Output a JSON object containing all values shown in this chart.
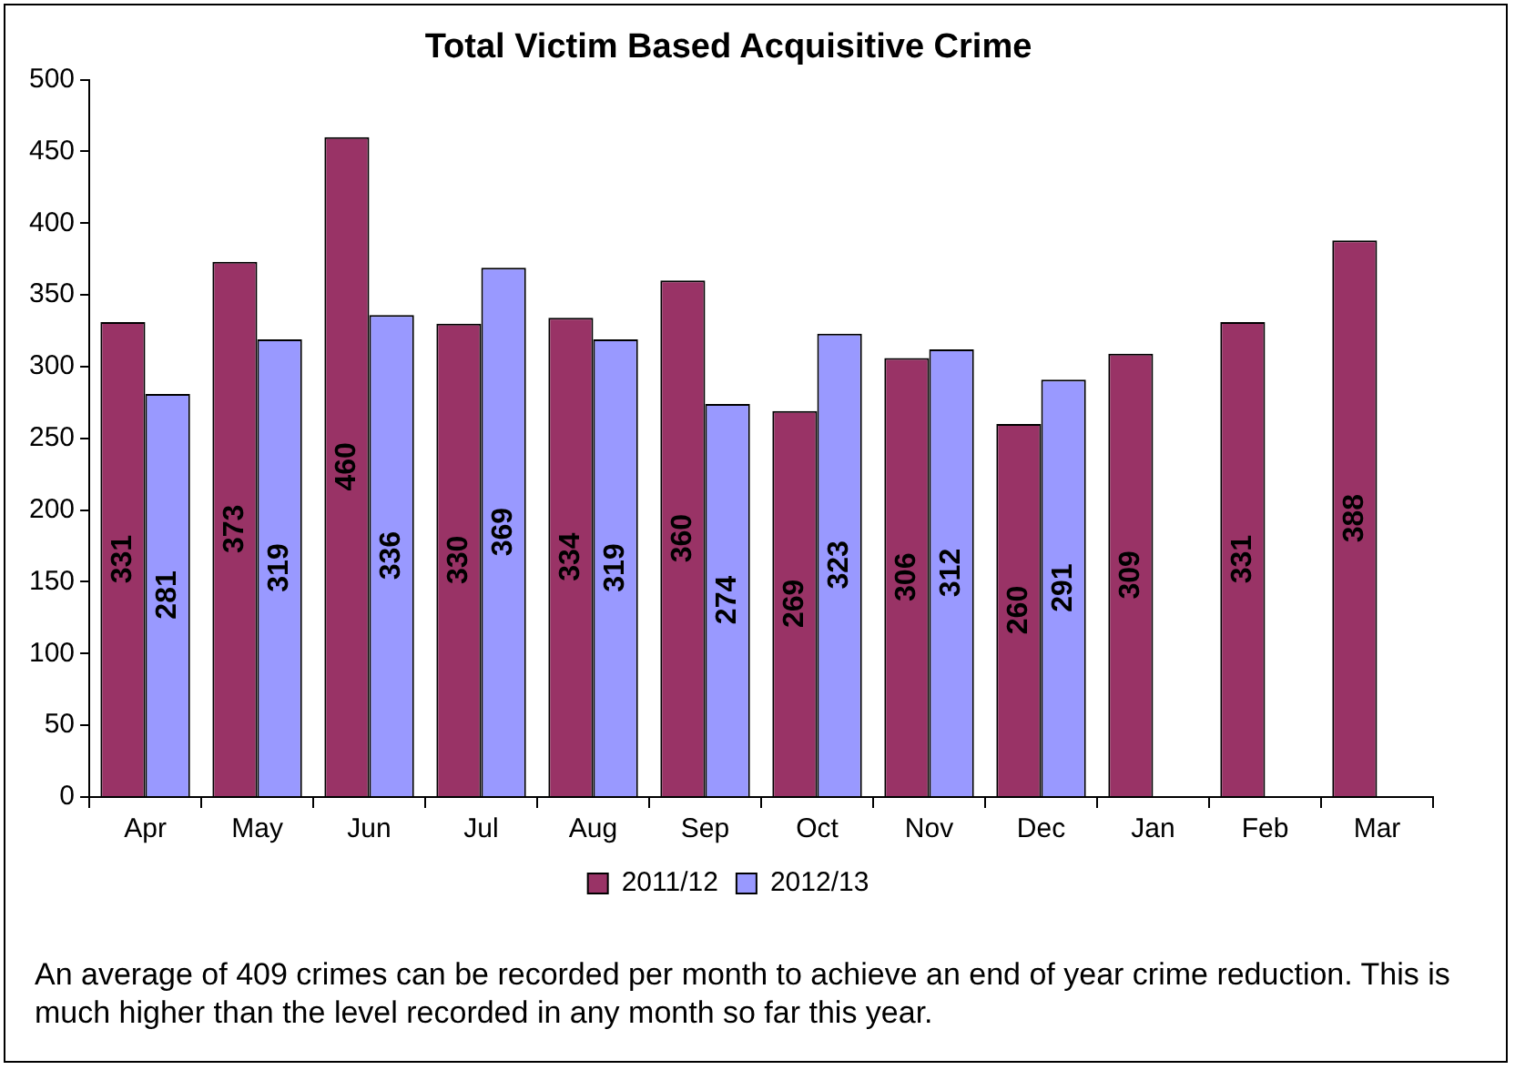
{
  "chart_data": {
    "type": "bar",
    "title": "Total Victim Based Acquisitive Crime",
    "categories": [
      "Apr",
      "May",
      "Jun",
      "Jul",
      "Aug",
      "Sep",
      "Oct",
      "Nov",
      "Dec",
      "Jan",
      "Feb",
      "Mar"
    ],
    "series": [
      {
        "name": "2011/12",
        "color": "#993366",
        "values": [
          331,
          373,
          460,
          330,
          334,
          360,
          269,
          306,
          260,
          309,
          331,
          388
        ]
      },
      {
        "name": "2012/13",
        "color": "#9999ff",
        "values": [
          281,
          319,
          336,
          369,
          319,
          274,
          323,
          312,
          291,
          null,
          null,
          null
        ]
      }
    ],
    "ylim": [
      0,
      500
    ],
    "yticks": [
      0,
      50,
      100,
      150,
      200,
      250,
      300,
      350,
      400,
      450,
      500
    ],
    "grid": false,
    "legend": "bottom",
    "data_labels": true,
    "annotations": [
      "An average of 409 crimes can be recorded per month to achieve an end of year crime reduction. This is much higher than the level recorded in any month so far this year."
    ]
  }
}
